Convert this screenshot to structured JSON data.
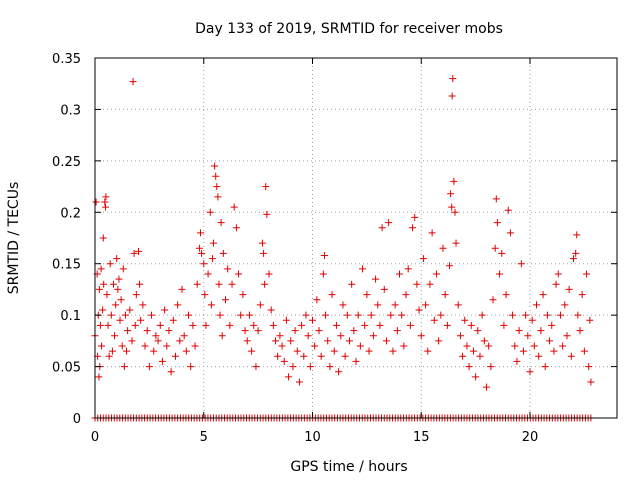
{
  "chart_data": {
    "type": "scatter",
    "title": "Day 133 of 2019, SRMTID for receiver mobs",
    "xlabel": "GPS time / hours",
    "ylabel": "SRMTID / TECUs",
    "xlim": [
      0,
      24
    ],
    "ylim": [
      0,
      0.35
    ],
    "xticks": [
      0,
      5,
      10,
      15,
      20
    ],
    "xtick_labels": [
      "0",
      "5",
      "10",
      "15",
      "20"
    ],
    "yticks": [
      0,
      0.05,
      0.1,
      0.15,
      0.2,
      0.25,
      0.3,
      0.35
    ],
    "ytick_labels": [
      "0",
      "0.05",
      "0.1",
      "0.15",
      "0.2",
      "0.25",
      "0.3",
      "0.35"
    ],
    "grid": true,
    "marker": "+",
    "color": "#e00000",
    "series": [
      {
        "name": "SRMTID",
        "points": [
          [
            0.0,
            0.08
          ],
          [
            0.05,
            0.21
          ],
          [
            0.1,
            0.14
          ],
          [
            0.12,
            0.06
          ],
          [
            0.15,
            0.1
          ],
          [
            0.18,
            0.04
          ],
          [
            0.2,
            0.125
          ],
          [
            0.22,
            0.05
          ],
          [
            0.25,
            0.09
          ],
          [
            0.28,
            0.145
          ],
          [
            0.3,
            0.07
          ],
          [
            0.35,
            0.105
          ],
          [
            0.38,
            0.175
          ],
          [
            0.4,
            0.13
          ],
          [
            0.45,
            0.21
          ],
          [
            0.48,
            0.205
          ],
          [
            0.5,
            0.215
          ],
          [
            0.55,
            0.12
          ],
          [
            0.6,
            0.09
          ],
          [
            0.65,
            0.06
          ],
          [
            0.7,
            0.15
          ],
          [
            0.75,
            0.1
          ],
          [
            0.8,
            0.065
          ],
          [
            0.85,
            0.13
          ],
          [
            0.9,
            0.08
          ],
          [
            0.95,
            0.11
          ],
          [
            1.0,
            0.155
          ],
          [
            1.05,
            0.125
          ],
          [
            1.1,
            0.135
          ],
          [
            1.15,
            0.095
          ],
          [
            1.2,
            0.115
          ],
          [
            1.25,
            0.07
          ],
          [
            1.3,
            0.145
          ],
          [
            1.35,
            0.05
          ],
          [
            1.4,
            0.1
          ],
          [
            1.45,
            0.065
          ],
          [
            1.5,
            0.085
          ],
          [
            1.6,
            0.105
          ],
          [
            1.7,
            0.075
          ],
          [
            1.75,
            0.327
          ],
          [
            1.8,
            0.16
          ],
          [
            1.85,
            0.09
          ],
          [
            1.9,
            0.12
          ],
          [
            2.0,
            0.162
          ],
          [
            2.05,
            0.13
          ],
          [
            2.1,
            0.095
          ],
          [
            2.2,
            0.11
          ],
          [
            2.3,
            0.07
          ],
          [
            2.4,
            0.085
          ],
          [
            2.5,
            0.05
          ],
          [
            2.6,
            0.1
          ],
          [
            2.7,
            0.065
          ],
          [
            2.8,
            0.08
          ],
          [
            2.9,
            0.075
          ],
          [
            3.0,
            0.09
          ],
          [
            3.1,
            0.055
          ],
          [
            3.2,
            0.105
          ],
          [
            3.3,
            0.07
          ],
          [
            3.4,
            0.085
          ],
          [
            3.5,
            0.045
          ],
          [
            3.6,
            0.095
          ],
          [
            3.7,
            0.06
          ],
          [
            3.8,
            0.11
          ],
          [
            3.9,
            0.075
          ],
          [
            4.0,
            0.125
          ],
          [
            4.1,
            0.08
          ],
          [
            4.2,
            0.065
          ],
          [
            4.3,
            0.1
          ],
          [
            4.4,
            0.05
          ],
          [
            4.5,
            0.09
          ],
          [
            4.6,
            0.07
          ],
          [
            4.7,
            0.13
          ],
          [
            4.8,
            0.165
          ],
          [
            4.85,
            0.18
          ],
          [
            4.9,
            0.16
          ],
          [
            5.0,
            0.15
          ],
          [
            5.05,
            0.12
          ],
          [
            5.1,
            0.09
          ],
          [
            5.2,
            0.14
          ],
          [
            5.3,
            0.2
          ],
          [
            5.35,
            0.11
          ],
          [
            5.4,
            0.155
          ],
          [
            5.45,
            0.17
          ],
          [
            5.5,
            0.245
          ],
          [
            5.55,
            0.235
          ],
          [
            5.6,
            0.225
          ],
          [
            5.65,
            0.215
          ],
          [
            5.7,
            0.13
          ],
          [
            5.75,
            0.1
          ],
          [
            5.8,
            0.19
          ],
          [
            5.85,
            0.08
          ],
          [
            5.9,
            0.16
          ],
          [
            6.0,
            0.115
          ],
          [
            6.1,
            0.145
          ],
          [
            6.2,
            0.09
          ],
          [
            6.3,
            0.13
          ],
          [
            6.4,
            0.205
          ],
          [
            6.5,
            0.185
          ],
          [
            6.6,
            0.14
          ],
          [
            6.7,
            0.1
          ],
          [
            6.8,
            0.12
          ],
          [
            6.9,
            0.085
          ],
          [
            7.0,
            0.075
          ],
          [
            7.1,
            0.1
          ],
          [
            7.2,
            0.065
          ],
          [
            7.3,
            0.09
          ],
          [
            7.4,
            0.05
          ],
          [
            7.5,
            0.085
          ],
          [
            7.6,
            0.11
          ],
          [
            7.7,
            0.17
          ],
          [
            7.75,
            0.16
          ],
          [
            7.8,
            0.13
          ],
          [
            7.85,
            0.225
          ],
          [
            7.9,
            0.198
          ],
          [
            8.0,
            0.14
          ],
          [
            8.1,
            0.105
          ],
          [
            8.2,
            0.09
          ],
          [
            8.3,
            0.075
          ],
          [
            8.4,
            0.06
          ],
          [
            8.5,
            0.08
          ],
          [
            8.6,
            0.07
          ],
          [
            8.7,
            0.055
          ],
          [
            8.8,
            0.095
          ],
          [
            8.9,
            0.04
          ],
          [
            9.0,
            0.075
          ],
          [
            9.1,
            0.05
          ],
          [
            9.2,
            0.085
          ],
          [
            9.3,
            0.065
          ],
          [
            9.4,
            0.035
          ],
          [
            9.5,
            0.09
          ],
          [
            9.6,
            0.06
          ],
          [
            9.7,
            0.1
          ],
          [
            9.8,
            0.08
          ],
          [
            9.9,
            0.05
          ],
          [
            10.0,
            0.095
          ],
          [
            10.1,
            0.07
          ],
          [
            10.2,
            0.115
          ],
          [
            10.3,
            0.085
          ],
          [
            10.4,
            0.06
          ],
          [
            10.5,
            0.14
          ],
          [
            10.55,
            0.158
          ],
          [
            10.6,
            0.1
          ],
          [
            10.7,
            0.075
          ],
          [
            10.8,
            0.05
          ],
          [
            10.9,
            0.12
          ],
          [
            11.0,
            0.065
          ],
          [
            11.1,
            0.09
          ],
          [
            11.2,
            0.045
          ],
          [
            11.3,
            0.08
          ],
          [
            11.4,
            0.11
          ],
          [
            11.5,
            0.06
          ],
          [
            11.6,
            0.1
          ],
          [
            11.7,
            0.075
          ],
          [
            11.8,
            0.13
          ],
          [
            11.9,
            0.085
          ],
          [
            12.0,
            0.055
          ],
          [
            12.1,
            0.1
          ],
          [
            12.2,
            0.07
          ],
          [
            12.3,
            0.145
          ],
          [
            12.4,
            0.09
          ],
          [
            12.5,
            0.12
          ],
          [
            12.6,
            0.065
          ],
          [
            12.7,
            0.1
          ],
          [
            12.8,
            0.08
          ],
          [
            12.9,
            0.135
          ],
          [
            13.0,
            0.11
          ],
          [
            13.1,
            0.09
          ],
          [
            13.2,
            0.185
          ],
          [
            13.3,
            0.125
          ],
          [
            13.4,
            0.075
          ],
          [
            13.5,
            0.19
          ],
          [
            13.6,
            0.1
          ],
          [
            13.7,
            0.065
          ],
          [
            13.8,
            0.11
          ],
          [
            13.9,
            0.085
          ],
          [
            14.0,
            0.14
          ],
          [
            14.1,
            0.1
          ],
          [
            14.2,
            0.07
          ],
          [
            14.3,
            0.12
          ],
          [
            14.4,
            0.145
          ],
          [
            14.5,
            0.09
          ],
          [
            14.6,
            0.185
          ],
          [
            14.7,
            0.195
          ],
          [
            14.8,
            0.13
          ],
          [
            14.9,
            0.105
          ],
          [
            15.0,
            0.08
          ],
          [
            15.1,
            0.155
          ],
          [
            15.2,
            0.11
          ],
          [
            15.3,
            0.065
          ],
          [
            15.4,
            0.13
          ],
          [
            15.5,
            0.18
          ],
          [
            15.6,
            0.095
          ],
          [
            15.7,
            0.14
          ],
          [
            15.8,
            0.075
          ],
          [
            15.9,
            0.1
          ],
          [
            16.0,
            0.165
          ],
          [
            16.1,
            0.12
          ],
          [
            16.2,
            0.09
          ],
          [
            16.3,
            0.148
          ],
          [
            16.35,
            0.218
          ],
          [
            16.4,
            0.205
          ],
          [
            16.42,
            0.313
          ],
          [
            16.45,
            0.33
          ],
          [
            16.5,
            0.23
          ],
          [
            16.55,
            0.2
          ],
          [
            16.6,
            0.17
          ],
          [
            16.7,
            0.11
          ],
          [
            16.8,
            0.08
          ],
          [
            16.9,
            0.06
          ],
          [
            17.0,
            0.095
          ],
          [
            17.1,
            0.07
          ],
          [
            17.2,
            0.05
          ],
          [
            17.3,
            0.09
          ],
          [
            17.4,
            0.065
          ],
          [
            17.5,
            0.04
          ],
          [
            17.6,
            0.085
          ],
          [
            17.7,
            0.06
          ],
          [
            17.8,
            0.1
          ],
          [
            17.9,
            0.075
          ],
          [
            18.0,
            0.03
          ],
          [
            18.1,
            0.07
          ],
          [
            18.2,
            0.05
          ],
          [
            18.3,
            0.115
          ],
          [
            18.4,
            0.165
          ],
          [
            18.45,
            0.213
          ],
          [
            18.5,
            0.19
          ],
          [
            18.6,
            0.14
          ],
          [
            18.7,
            0.16
          ],
          [
            18.8,
            0.09
          ],
          [
            18.9,
            0.12
          ],
          [
            19.0,
            0.202
          ],
          [
            19.1,
            0.18
          ],
          [
            19.2,
            0.1
          ],
          [
            19.3,
            0.07
          ],
          [
            19.4,
            0.055
          ],
          [
            19.5,
            0.085
          ],
          [
            19.6,
            0.15
          ],
          [
            19.7,
            0.065
          ],
          [
            19.8,
            0.1
          ],
          [
            19.9,
            0.08
          ],
          [
            20.0,
            0.045
          ],
          [
            20.1,
            0.095
          ],
          [
            20.2,
            0.07
          ],
          [
            20.3,
            0.11
          ],
          [
            20.4,
            0.06
          ],
          [
            20.5,
            0.085
          ],
          [
            20.6,
            0.12
          ],
          [
            20.7,
            0.05
          ],
          [
            20.8,
            0.1
          ],
          [
            20.9,
            0.075
          ],
          [
            21.0,
            0.09
          ],
          [
            21.1,
            0.065
          ],
          [
            21.2,
            0.13
          ],
          [
            21.3,
            0.14
          ],
          [
            21.4,
            0.1
          ],
          [
            21.5,
            0.07
          ],
          [
            21.6,
            0.11
          ],
          [
            21.7,
            0.08
          ],
          [
            21.8,
            0.125
          ],
          [
            21.9,
            0.06
          ],
          [
            22.0,
            0.155
          ],
          [
            22.1,
            0.16
          ],
          [
            22.15,
            0.178
          ],
          [
            22.2,
            0.1
          ],
          [
            22.3,
            0.085
          ],
          [
            22.4,
            0.12
          ],
          [
            22.5,
            0.065
          ],
          [
            22.6,
            0.14
          ],
          [
            22.7,
            0.05
          ],
          [
            22.75,
            0.095
          ],
          [
            22.8,
            0.035
          ]
        ]
      }
    ],
    "zero_band": {
      "x_start": 0,
      "x_end": 22.8,
      "y": 0
    }
  }
}
